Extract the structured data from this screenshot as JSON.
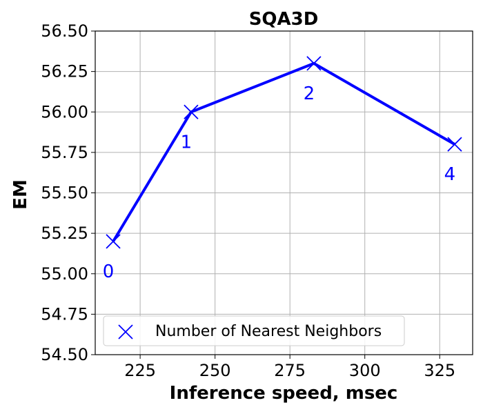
{
  "chart_data": {
    "type": "line",
    "title": "SQA3D",
    "xlabel": "Inference speed, msec",
    "ylabel": "EM",
    "xlim": [
      210,
      336
    ],
    "ylim": [
      54.5,
      56.5
    ],
    "x_ticks": [
      225,
      250,
      275,
      300,
      325
    ],
    "y_ticks": [
      54.5,
      54.75,
      55.0,
      55.25,
      55.5,
      55.75,
      56.0,
      56.25,
      56.5
    ],
    "y_tick_labels": [
      "54.50",
      "54.75",
      "55.00",
      "55.25",
      "55.50",
      "55.75",
      "56.00",
      "56.25",
      "56.50"
    ],
    "grid": true,
    "legend_position": "lower-center",
    "series": [
      {
        "name": "Number of Nearest Neighbors",
        "marker": "x",
        "color": "#0000ff",
        "x": [
          216,
          242,
          283,
          330
        ],
        "y": [
          55.2,
          56.0,
          56.3,
          55.8
        ],
        "point_labels": [
          "0",
          "1",
          "2",
          "4"
        ]
      }
    ]
  }
}
